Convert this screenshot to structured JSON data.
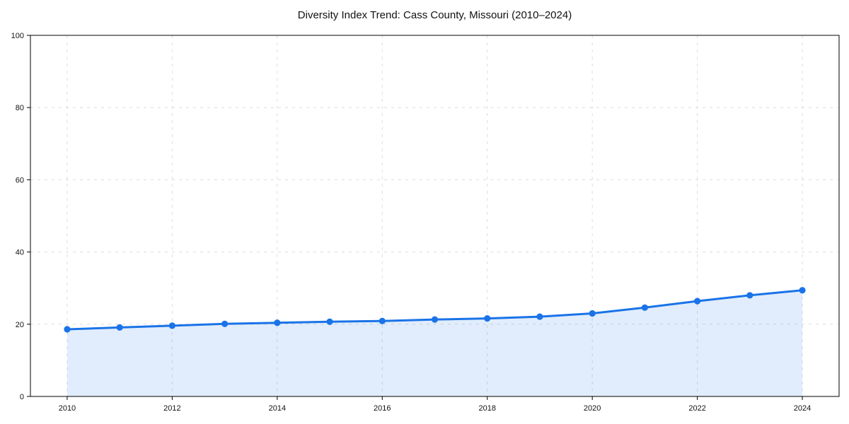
{
  "chart_data": {
    "type": "area",
    "title": "Diversity Index Trend: Cass County, Missouri (2010–2024)",
    "xlabel": "",
    "ylabel": "",
    "x": [
      2010,
      2011,
      2012,
      2013,
      2014,
      2015,
      2016,
      2017,
      2018,
      2019,
      2020,
      2021,
      2022,
      2023,
      2024
    ],
    "series": [
      {
        "name": "Diversity Index",
        "values": [
          18.6,
          19.1,
          19.6,
          20.1,
          20.4,
          20.7,
          20.9,
          21.3,
          21.6,
          22.1,
          23.0,
          24.6,
          26.4,
          28.0,
          29.4
        ]
      }
    ],
    "xlim": [
      2009.3,
      2024.7
    ],
    "ylim": [
      0,
      100
    ],
    "x_ticks": [
      2010,
      2012,
      2014,
      2016,
      2018,
      2020,
      2022,
      2024
    ],
    "y_ticks": [
      0,
      20,
      40,
      60,
      80,
      100
    ],
    "grid": "dashed-both-axes",
    "legend": "none",
    "marker": "circle",
    "colors": {
      "line": "#1a73e8",
      "marker": "#1a73e8",
      "fill": "rgba(26,115,232,0.13)",
      "grid": "#dcdcdc",
      "spine": "#000000",
      "text": "#111111",
      "background": "#ffffff"
    }
  }
}
